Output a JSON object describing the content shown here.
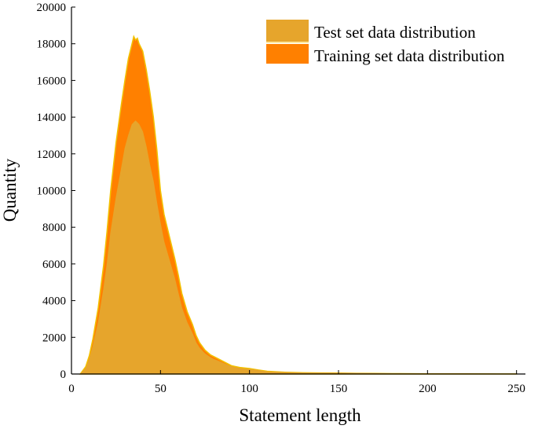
{
  "chart_data": {
    "type": "area",
    "xlabel": "Statement length",
    "ylabel": "Quantity",
    "xlim": [
      0,
      255
    ],
    "ylim": [
      0,
      20000
    ],
    "x_ticks": [
      0,
      50,
      100,
      150,
      200,
      250
    ],
    "y_ticks": [
      0,
      2000,
      4000,
      6000,
      8000,
      10000,
      12000,
      14000,
      16000,
      18000,
      20000
    ],
    "grid": false,
    "legend": "top-right",
    "series": [
      {
        "name": "Training set data distribution",
        "color": "#FF8000",
        "x": [
          5,
          8,
          10,
          12,
          15,
          18,
          20,
          22,
          25,
          28,
          30,
          32,
          34,
          35,
          36,
          37,
          38,
          40,
          42,
          44,
          46,
          48,
          50,
          52,
          55,
          58,
          60,
          62,
          65,
          68,
          70,
          72,
          75,
          78,
          80,
          85,
          90,
          95,
          100,
          105,
          110,
          120,
          130,
          140,
          150,
          160,
          170,
          180,
          200,
          220,
          250
        ],
        "values": [
          0,
          400,
          1000,
          1900,
          3600,
          5900,
          7800,
          10000,
          12600,
          14700,
          16000,
          17200,
          18000,
          18400,
          18200,
          18300,
          18000,
          17600,
          16600,
          15400,
          14000,
          12200,
          10000,
          8700,
          7500,
          6300,
          5400,
          4400,
          3400,
          2700,
          2100,
          1700,
          1300,
          1050,
          950,
          700,
          450,
          350,
          300,
          220,
          150,
          100,
          70,
          60,
          50,
          40,
          30,
          20,
          12,
          8,
          5
        ]
      },
      {
        "name": "Test set data distribution",
        "color": "#E6A52C",
        "x": [
          5,
          8,
          10,
          12,
          15,
          18,
          20,
          22,
          25,
          28,
          30,
          32,
          34,
          35,
          36,
          38,
          40,
          42,
          44,
          46,
          48,
          50,
          52,
          55,
          58,
          60,
          62,
          65,
          68,
          70,
          72,
          75,
          78,
          80,
          85,
          90,
          95,
          100,
          105,
          110,
          120,
          130,
          140,
          150,
          160,
          170,
          180,
          200,
          220,
          250
        ],
        "values": [
          0,
          300,
          800,
          1500,
          2800,
          4600,
          6000,
          7700,
          9600,
          11200,
          12300,
          13000,
          13600,
          13700,
          13800,
          13600,
          13200,
          12400,
          11400,
          10500,
          9300,
          8200,
          7200,
          6200,
          5200,
          4400,
          3600,
          2800,
          2200,
          1700,
          1400,
          1100,
          900,
          800,
          600,
          400,
          300,
          260,
          200,
          130,
          90,
          60,
          50,
          45,
          35,
          25,
          18,
          10,
          7,
          4
        ]
      }
    ]
  }
}
